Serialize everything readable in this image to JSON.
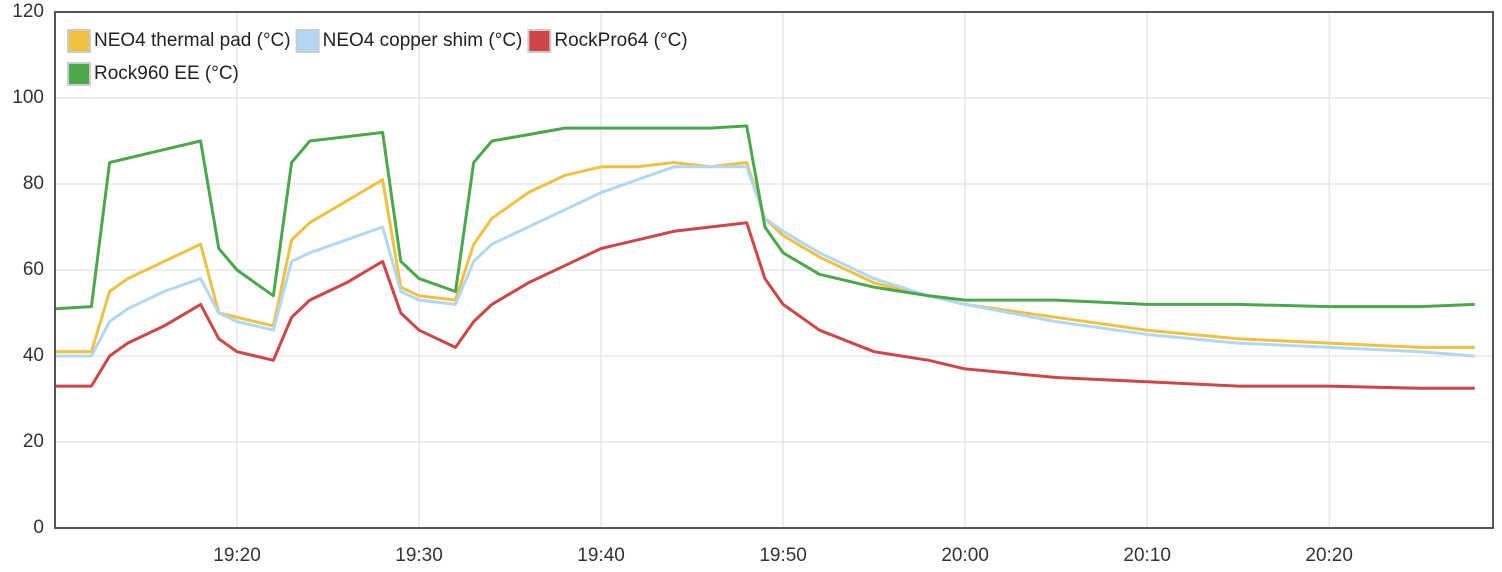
{
  "chart_data": {
    "type": "line",
    "x": [
      "19:10",
      "19:12",
      "19:13",
      "19:14",
      "19:16",
      "19:18",
      "19:19",
      "19:20",
      "19:22",
      "19:23",
      "19:24",
      "19:26",
      "19:28",
      "19:29",
      "19:30",
      "19:32",
      "19:33",
      "19:34",
      "19:36",
      "19:38",
      "19:40",
      "19:42",
      "19:44",
      "19:46",
      "19:48",
      "19:49",
      "19:50",
      "19:52",
      "19:55",
      "19:58",
      "20:00",
      "20:05",
      "20:10",
      "20:15",
      "20:20",
      "20:25",
      "20:28"
    ],
    "series": [
      {
        "name": "NEO4 thermal pad (°C)",
        "color": "#f0c040",
        "values": [
          41,
          41,
          55,
          58,
          62,
          66,
          50,
          49,
          47,
          67,
          71,
          76,
          81,
          56,
          54,
          53,
          66,
          72,
          78,
          82,
          84,
          84,
          85,
          84,
          85,
          72,
          68,
          63,
          57,
          54,
          52,
          49,
          46,
          44,
          43,
          42,
          42
        ]
      },
      {
        "name": "NEO4 copper shim (°C)",
        "color": "#b0d8f4",
        "values": [
          40,
          40,
          48,
          51,
          55,
          58,
          50,
          48,
          46,
          62,
          64,
          67,
          70,
          55,
          53,
          52,
          62,
          66,
          70,
          74,
          78,
          81,
          84,
          84,
          84,
          72,
          69,
          64,
          58,
          54,
          52,
          48,
          45,
          43,
          42,
          41,
          40
        ]
      },
      {
        "name": "RockPro64 (°C)",
        "color": "#d04545",
        "values": [
          33,
          33,
          40,
          43,
          47,
          52,
          44,
          41,
          39,
          49,
          53,
          57,
          62,
          50,
          46,
          42,
          48,
          52,
          57,
          61,
          65,
          67,
          69,
          70,
          71,
          58,
          52,
          46,
          41,
          39,
          37,
          35,
          34,
          33,
          33,
          32.5,
          32.5
        ]
      },
      {
        "name": "Rock960 EE (°C)",
        "color": "#4aa84a",
        "values": [
          51,
          51.5,
          85,
          86,
          88,
          90,
          65,
          60,
          54,
          85,
          90,
          91,
          92,
          62,
          58,
          55,
          85,
          90,
          91.5,
          93,
          93,
          93,
          93,
          93,
          93.5,
          70,
          64,
          59,
          56,
          54,
          53,
          53,
          52,
          52,
          51.5,
          51.5,
          52
        ]
      }
    ],
    "xlim": [
      "19:10",
      "20:29"
    ],
    "xticks": [
      "19:20",
      "19:30",
      "19:40",
      "19:50",
      "20:00",
      "20:10",
      "20:20"
    ],
    "ylim": [
      0,
      120
    ],
    "yticks": [
      0,
      20,
      40,
      60,
      80,
      100,
      120
    ],
    "grid": true
  }
}
